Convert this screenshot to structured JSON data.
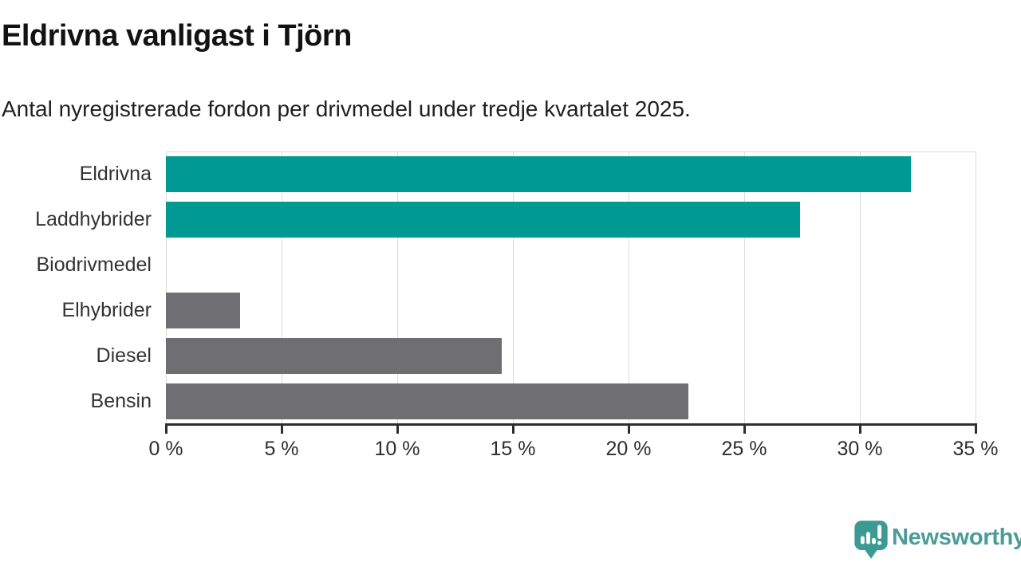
{
  "header": {
    "title": "Eldrivna vanligast i Tjörn",
    "subtitle": "Antal nyregistrerade fordon per drivmedel under tredje kvartalet 2025."
  },
  "chart_data": {
    "type": "bar",
    "orientation": "horizontal",
    "title": "Eldrivna vanligast i Tjörn",
    "subtitle": "Antal nyregistrerade fordon per drivmedel under tredje kvartalet 2025.",
    "categories": [
      "Eldrivna",
      "Laddhybrider",
      "Biodrivmedel",
      "Elhybrider",
      "Diesel",
      "Bensin"
    ],
    "values": [
      32.2,
      27.4,
      0,
      3.2,
      14.5,
      22.6
    ],
    "unit": "%",
    "xlim": [
      0,
      35
    ],
    "xticks": [
      0,
      5,
      10,
      15,
      20,
      25,
      30,
      35
    ],
    "xtick_suffix": " %",
    "grid": true,
    "bar_colors": [
      "#009a93",
      "#009a93",
      "#6e6e73",
      "#6e6e73",
      "#6e6e73",
      "#6e6e73"
    ],
    "highlight_color": "#009a93",
    "default_color": "#6e6e73"
  },
  "footer": {
    "brand": "Newsworthy",
    "brand_color": "#4a9c98",
    "logo_color": "#3c9a95"
  }
}
